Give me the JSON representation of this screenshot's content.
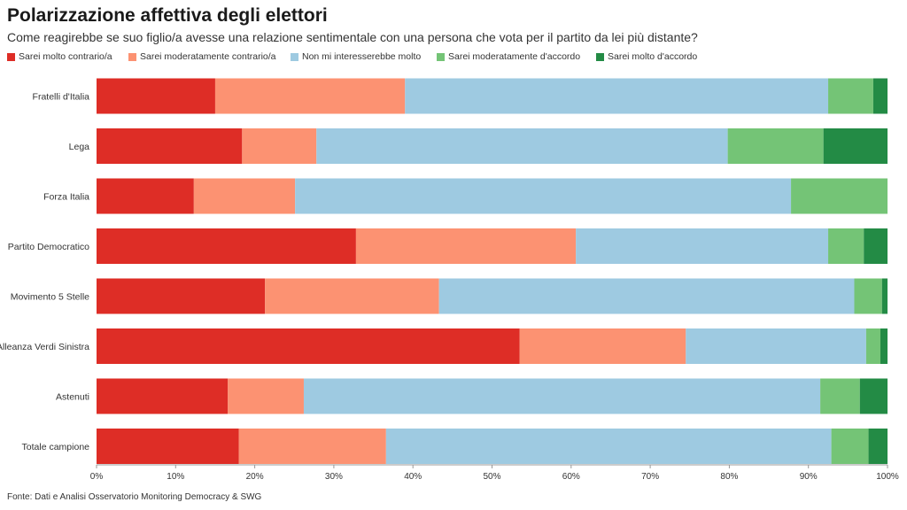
{
  "title": "Polarizzazione affettiva degli elettori",
  "subtitle": "Come reagirebbe se suo figlio/a avesse una relazione sentimentale con una persona che vota per il partito da lei più distante?",
  "source": "Fonte: Dati e Analisi Osservatorio Monitoring Democracy & SWG",
  "chart_data": {
    "type": "bar",
    "orientation": "horizontal",
    "stacked": "percent",
    "categories": [
      "Fratelli d'Italia",
      "Lega",
      "Forza Italia",
      "Partito Democratico",
      "Movimento 5 Stelle",
      "Alleanza Verdi Sinistra",
      "Astenuti",
      "Totale campione"
    ],
    "series": [
      {
        "name": "Sarei molto contrario/a",
        "color": "#de2d26",
        "values": [
          15,
          18.4,
          12.3,
          32.8,
          21.3,
          53.5,
          16.6,
          18
        ]
      },
      {
        "name": "Sarei moderatamente contrario/a",
        "color": "#fc9272",
        "values": [
          24,
          9.4,
          12.8,
          27.8,
          22,
          21,
          9.6,
          18.6
        ]
      },
      {
        "name": "Non mi interesserebbe molto",
        "color": "#9ecae1",
        "values": [
          53.5,
          52,
          62.7,
          31.9,
          52.5,
          22.8,
          65.3,
          56.3
        ]
      },
      {
        "name": "Sarei moderatamente d'accordo",
        "color": "#74c476",
        "values": [
          5.7,
          12.1,
          12.2,
          4.5,
          3.5,
          1.8,
          5,
          4.7
        ]
      },
      {
        "name": "Sarei molto d'accordo",
        "color": "#238b45",
        "values": [
          1.8,
          8.1,
          0,
          3,
          0.7,
          0.9,
          3.5,
          2.4
        ]
      }
    ],
    "x_ticks": [
      "0%",
      "10%",
      "20%",
      "30%",
      "40%",
      "50%",
      "60%",
      "70%",
      "80%",
      "90%",
      "100%"
    ],
    "xlim": [
      0,
      100
    ],
    "legend_position": "top",
    "grid": false
  }
}
